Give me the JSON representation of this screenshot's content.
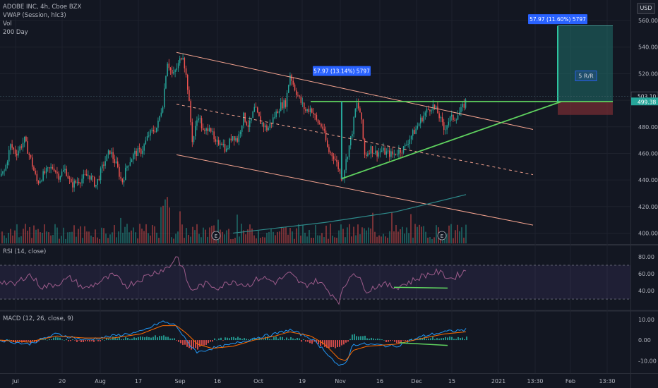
{
  "legend": {
    "title": "ADOBE INC, 4h, Cboe BZX",
    "vwap": "VWAP (Session, hlc3)",
    "vol": "Vol",
    "ma": "200 Day"
  },
  "currency": "USD",
  "rsi_label": "RSI (14, close)",
  "macd_label": "MACD (12, 26, close, 9)",
  "price_tags": {
    "upper": "503.10",
    "lower": "499.38"
  },
  "annotations": {
    "measure_mid": "57.97 (13.14%) 5797",
    "measure_top": "57.97 (11.60%) 5797",
    "rr_label": "5 R/R"
  },
  "colors": {
    "up": "#26a69a",
    "down": "#ef5350",
    "trend_green": "#4caf50",
    "channel": "#f4a38f",
    "ma200": "#2e8b8b",
    "measure": "#2962ff",
    "rsi_band": "#7e57c2",
    "macd": "#2196f3",
    "signal": "#ff6d00"
  },
  "chart_data": [
    {
      "type": "line",
      "name": "price",
      "x_ticks": [
        "Jul",
        "20",
        "Aug",
        "17",
        "Sep",
        "16",
        "Oct",
        "19",
        "Nov",
        "16",
        "Dec",
        "15",
        "2021",
        "13:30",
        "Feb",
        "13:30"
      ],
      "y_ticks": [
        "560.00",
        "540.00",
        "520.00",
        "500.00",
        "480.00",
        "460.00",
        "440.00",
        "420.00",
        "400.00"
      ],
      "ylim": [
        396,
        568
      ],
      "anchors": [
        [
          0,
          443
        ],
        [
          6,
          447
        ],
        [
          14,
          466
        ],
        [
          22,
          460
        ],
        [
          34,
          470
        ],
        [
          43,
          455
        ],
        [
          52,
          438
        ],
        [
          62,
          445
        ],
        [
          75,
          450
        ],
        [
          82,
          443
        ],
        [
          92,
          448
        ],
        [
          100,
          436
        ],
        [
          112,
          440
        ],
        [
          125,
          444
        ],
        [
          135,
          436
        ],
        [
          146,
          452
        ],
        [
          155,
          462
        ],
        [
          165,
          450
        ],
        [
          172,
          438
        ],
        [
          180,
          452
        ],
        [
          190,
          460
        ],
        [
          200,
          462
        ],
        [
          210,
          474
        ],
        [
          222,
          480
        ],
        [
          230,
          498
        ],
        [
          236,
          530
        ],
        [
          244,
          518
        ],
        [
          252,
          527
        ],
        [
          258,
          536
        ],
        [
          265,
          510
        ],
        [
          272,
          468
        ],
        [
          280,
          490
        ],
        [
          288,
          474
        ],
        [
          296,
          482
        ],
        [
          304,
          466
        ],
        [
          312,
          470
        ],
        [
          320,
          462
        ],
        [
          328,
          474
        ],
        [
          336,
          470
        ],
        [
          344,
          488
        ],
        [
          352,
          480
        ],
        [
          360,
          494
        ],
        [
          368,
          484
        ],
        [
          378,
          478
        ],
        [
          388,
          488
        ],
        [
          396,
          496
        ],
        [
          404,
          498
        ],
        [
          410,
          520
        ],
        [
          416,
          510
        ],
        [
          424,
          500
        ],
        [
          432,
          492
        ],
        [
          440,
          494
        ],
        [
          448,
          484
        ],
        [
          456,
          480
        ],
        [
          464,
          462
        ],
        [
          472,
          458
        ],
        [
          478,
          450
        ],
        [
          484,
          441
        ],
        [
          490,
          456
        ],
        [
          498,
          476
        ],
        [
          504,
          498
        ],
        [
          510,
          490
        ],
        [
          516,
          458
        ],
        [
          524,
          464
        ],
        [
          532,
          460
        ],
        [
          540,
          462
        ],
        [
          548,
          460
        ],
        [
          556,
          459
        ],
        [
          564,
          462
        ],
        [
          572,
          464
        ],
        [
          580,
          472
        ],
        [
          588,
          478
        ],
        [
          596,
          486
        ],
        [
          604,
          492
        ],
        [
          612,
          496
        ],
        [
          620,
          490
        ],
        [
          628,
          478
        ],
        [
          636,
          486
        ],
        [
          644,
          487
        ],
        [
          652,
          492
        ],
        [
          660,
          500
        ]
      ],
      "drawings": {
        "upper_channel": [
          [
            250,
            536
          ],
          [
            755,
            478
          ]
        ],
        "middle_channel": [
          [
            250,
            497
          ],
          [
            755,
            444
          ]
        ],
        "lower_channel": [
          [
            250,
            459
          ],
          [
            755,
            406
          ]
        ],
        "rising_support": [
          [
            484,
            441
          ],
          [
            795,
            499
          ]
        ],
        "horizontal_resistance": [
          [
            440,
            499
          ],
          [
            868,
            499
          ]
        ],
        "ma200": [
          [
            330,
            400
          ],
          [
            460,
            408
          ],
          [
            560,
            416
          ],
          [
            660,
            429
          ]
        ],
        "measure_mid_line": [
          [
            484,
            441
          ],
          [
            484,
            499
          ]
        ],
        "measure_top_line": [
          [
            790,
            499
          ],
          [
            790,
            556
          ]
        ],
        "target_zone": [
          [
            790,
            499
          ],
          [
            868,
            556
          ]
        ],
        "stop_zone": [
          [
            790,
            489
          ],
          [
            868,
            499
          ]
        ]
      },
      "earnings_markers_x": [
        306,
        626
      ]
    },
    {
      "type": "line",
      "name": "RSI (14, close)",
      "y_ticks": [
        "80.00",
        "60.00",
        "40.00"
      ],
      "ylim": [
        20,
        90
      ],
      "band": [
        30,
        70
      ],
      "values_x": [
        0,
        20,
        40,
        60,
        80,
        100,
        120,
        140,
        160,
        180,
        200,
        220,
        240,
        250,
        260,
        270,
        290,
        310,
        330,
        350,
        370,
        390,
        410,
        430,
        450,
        470,
        480,
        490,
        500,
        510,
        520,
        540,
        560,
        580,
        600,
        620,
        640,
        660
      ],
      "values": [
        52,
        46,
        60,
        44,
        48,
        55,
        42,
        50,
        58,
        46,
        54,
        62,
        68,
        82,
        64,
        40,
        48,
        44,
        52,
        46,
        56,
        50,
        60,
        46,
        52,
        36,
        28,
        48,
        64,
        52,
        40,
        48,
        44,
        50,
        58,
        62,
        54,
        64
      ],
      "divergence_line": [
        [
          558,
          44
        ],
        [
          634,
          43
        ]
      ]
    },
    {
      "type": "bar",
      "name": "MACD (12, 26, close, 9)",
      "y_ticks": [
        "10.00",
        "0.00",
        "-10.00"
      ],
      "ylim": [
        -15,
        13
      ],
      "macd_x": [
        0,
        40,
        80,
        120,
        160,
        200,
        230,
        250,
        265,
        280,
        300,
        330,
        360,
        390,
        410,
        440,
        460,
        480,
        490,
        500,
        520,
        560,
        600,
        630,
        660
      ],
      "macd": [
        0,
        -2,
        3,
        0,
        2,
        4,
        9,
        7,
        -1,
        -6,
        -4,
        -2,
        1,
        3,
        5,
        1,
        -5,
        -13,
        -11,
        -2,
        -2,
        -3,
        2,
        4,
        5
      ],
      "signal": [
        0,
        -1,
        2,
        1,
        1,
        3,
        7,
        7,
        3,
        -2,
        -4,
        -3,
        0,
        2,
        4,
        2,
        -2,
        -9,
        -10,
        -5,
        -3,
        -2,
        1,
        3,
        4
      ],
      "divergence_line": [
        [
          566,
          -1.3
        ],
        [
          634,
          -2.6
        ]
      ]
    }
  ]
}
